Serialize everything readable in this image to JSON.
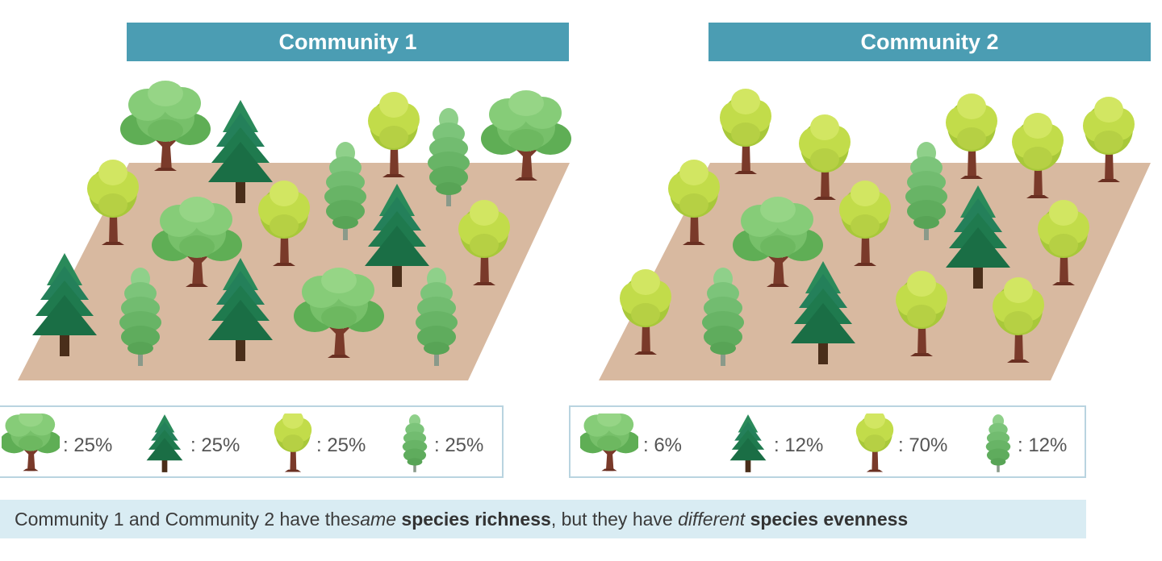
{
  "headers": {
    "community1": "Community 1",
    "community2": "Community 2"
  },
  "legend1": [
    {
      "species": "broadleaf-tree",
      "pct": ": 25%"
    },
    {
      "species": "pine-tree",
      "pct": ": 25%"
    },
    {
      "species": "yellow-green-tree",
      "pct": ": 25%"
    },
    {
      "species": "cypress-tree",
      "pct": ": 25%"
    }
  ],
  "legend2": [
    {
      "species": "broadleaf-tree",
      "pct": ": 6%"
    },
    {
      "species": "pine-tree",
      "pct": ": 12%"
    },
    {
      "species": "yellow-green-tree",
      "pct": ": 70%"
    },
    {
      "species": "cypress-tree",
      "pct": ": 12%"
    }
  ],
  "caption": {
    "part1": "Community 1 and Community 2 have the ",
    "same": "same",
    "part2": " ",
    "richness": "species richness",
    "part3": ", but they have ",
    "different": "different",
    "part4": " ",
    "evenness": "species evenness"
  },
  "colors": {
    "header": "#4b9db3",
    "ground": "#d8b9a0",
    "broadleaf": "#77c06a",
    "pine": "#1f7a4e",
    "yellowgreen": "#c2dc4a",
    "cypress": "#7cc47a"
  }
}
